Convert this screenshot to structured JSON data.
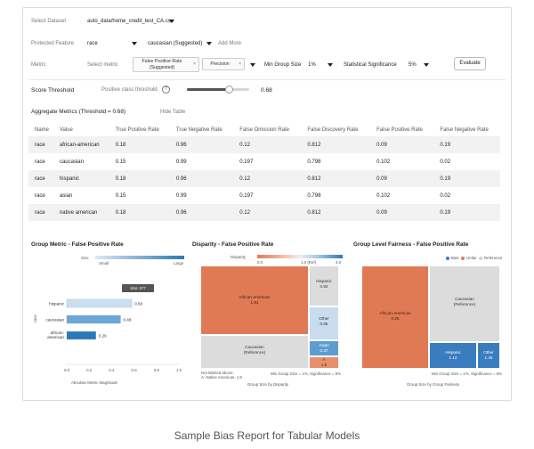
{
  "controls": {
    "dataset_label": "Select Dataset",
    "dataset_value": "auto_data/home_credit_test_CA.csv",
    "protected_label": "Protected Feature",
    "protected_value": "race",
    "protected_ref_value": "caucasian (Suggested)",
    "add_more": "Add More",
    "metric_label": "Metric",
    "metric_placeholder": "Select metric",
    "metric_chip1": "False Positive Rate (Suggested)",
    "metric_chip2": "Precision",
    "min_group_label": "Min Group Size",
    "min_group_value": "1%",
    "stat_sig_label": "Statistical Significance",
    "stat_sig_value": "5%",
    "evaluate": "Evaluate"
  },
  "threshold": {
    "label": "Score Threshold",
    "sub_label": "Positive class threshold",
    "info_glyph": "?",
    "value": "0.68",
    "fraction": 0.68
  },
  "aggregate": {
    "title": "Aggregate Metrics (Threshold = 0.68)",
    "hide": "Hide Table",
    "columns": [
      "Name",
      "Value",
      "True Positive Rate",
      "True Negative Rate",
      "False Omission Rate",
      "False Discovery Rate",
      "False Positive Rate",
      "False Negative Rate"
    ],
    "rows": [
      [
        "race",
        "african-american",
        "0.18",
        "0.96",
        "0.12",
        "0.812",
        "0.09",
        "0.19"
      ],
      [
        "race",
        "caucasian",
        "0.15",
        "0.99",
        "0.197",
        "0.798",
        "0.102",
        "0.02"
      ],
      [
        "race",
        "hispanic",
        "0.18",
        "0.96",
        "0.12",
        "0.812",
        "0.09",
        "0.19"
      ],
      [
        "race",
        "asian",
        "0.15",
        "0.99",
        "0.197",
        "0.798",
        "0.102",
        "0.02"
      ],
      [
        "race",
        "native american",
        "0.18",
        "0.96",
        "0.12",
        "0.812",
        "0.09",
        "0.19"
      ]
    ]
  },
  "chart_data": [
    {
      "type": "bar",
      "title": "Group Metric - False Positive Rate",
      "size_legend": {
        "label": "Size",
        "min": "Small",
        "max": "Large"
      },
      "ylabel": "race",
      "xlabel": "Absolute Metric Magnitude",
      "tooltip": "Size: 577",
      "categories": [
        "hispanic",
        "caucasian",
        "african-american"
      ],
      "values": [
        0.58,
        0.48,
        0.26
      ],
      "value_labels": [
        "0.58",
        "0.48",
        "0.26"
      ],
      "colors": [
        "#c9dff0",
        "#6ba7d4",
        "#2b78b8"
      ],
      "xlim": [
        0,
        1
      ],
      "xticks": [
        "0.0",
        "0.2",
        "0.4",
        "0.6",
        "0.8",
        "1.0"
      ]
    },
    {
      "type": "heatmap",
      "title": "Disparity - False Positive Rate",
      "legend": {
        "label": "Disparity",
        "ticks": [
          "0.0",
          "1.0 (Ref)",
          "4.0"
        ]
      },
      "cells": [
        {
          "label": "African-American",
          "value": "1.91"
        },
        {
          "label": "Hispanic",
          "value": "0.92"
        },
        {
          "label": "Other",
          "value": "0.85"
        },
        {
          "label": "Caucasian",
          "value": "(Reference)"
        },
        {
          "label": "Asian",
          "value": "0.37"
        },
        {
          "label": "A",
          "value": "1.8"
        }
      ],
      "footnote1": "Not labeled above:",
      "footnote2": "A: Native American, 1.8",
      "note": "Min Group Size = 1%, Significance = 5%",
      "xlabel": "Group Size by Disparity"
    },
    {
      "type": "heatmap",
      "title": "Group Level Fairness - False Positive Rate",
      "legend": [
        "Bias",
        "Unfair",
        "Reference"
      ],
      "legend_colors": [
        "#3a7dbf",
        "#e07a55",
        "#cfcfcf"
      ],
      "cells": [
        {
          "label": "African-American",
          "value": "0.26"
        },
        {
          "label": "Caucasian",
          "value": "(Reference)"
        },
        {
          "label": "Hispanic",
          "value": "1.12"
        },
        {
          "label": "Other",
          "value": "1.45"
        }
      ],
      "note": "Min Group Size = 1%, Significance = 5%",
      "xlabel": "Group Size by Group Fairness"
    }
  ],
  "caption": "Sample Bias Report for Tabular Models"
}
